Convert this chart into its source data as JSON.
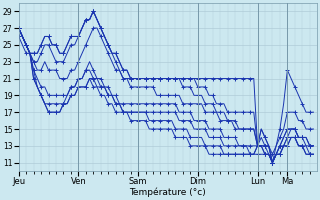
{
  "xlabel": "Température (°c)",
  "bg_color": "#cce8f0",
  "grid_color": "#b0ccd8",
  "line_color": "#1a35b0",
  "ylim": [
    10,
    30
  ],
  "yticks": [
    11,
    13,
    15,
    17,
    19,
    21,
    23,
    25,
    27,
    29
  ],
  "day_labels": [
    "Jeu",
    "Ven",
    "Sam",
    "Dim",
    "Lun",
    "Ma"
  ],
  "day_tick_positions": [
    0,
    16,
    32,
    48,
    64,
    72
  ],
  "xlim": [
    0,
    80
  ],
  "series": [
    [
      27,
      26,
      25,
      24,
      24,
      24,
      25,
      26,
      26,
      25,
      25,
      24,
      24,
      25,
      26,
      26,
      26,
      27,
      28,
      28,
      29,
      28,
      27,
      26,
      25,
      24,
      24,
      23,
      22,
      22,
      21,
      21,
      21,
      21,
      21,
      21,
      21,
      21,
      21,
      21,
      21,
      21,
      21,
      21,
      21,
      21,
      21,
      21,
      21,
      21,
      21,
      21,
      21,
      21,
      21,
      21,
      21,
      21,
      21,
      21,
      21,
      21,
      21,
      21,
      13,
      15,
      14,
      13,
      12,
      13,
      15,
      18,
      22,
      21,
      20,
      19,
      18,
      17,
      17,
      17
    ],
    [
      27,
      26,
      25,
      24,
      24,
      24,
      25,
      26,
      26,
      25,
      25,
      24,
      24,
      25,
      26,
      26,
      26,
      27,
      28,
      28,
      29,
      28,
      27,
      26,
      25,
      24,
      24,
      23,
      22,
      22,
      21,
      21,
      21,
      21,
      21,
      21,
      21,
      21,
      21,
      21,
      21,
      21,
      21,
      21,
      21,
      21,
      21,
      21,
      20,
      20,
      20,
      19,
      19,
      18,
      18,
      18,
      17,
      17,
      17,
      17,
      17,
      17,
      17,
      17,
      13,
      15,
      14,
      13,
      11,
      13,
      14,
      15,
      17,
      17,
      17,
      16,
      16,
      15,
      15,
      15
    ],
    [
      27,
      26,
      25,
      24,
      23,
      23,
      24,
      25,
      25,
      24,
      23,
      23,
      23,
      24,
      25,
      25,
      26,
      27,
      28,
      28,
      29,
      28,
      27,
      26,
      25,
      24,
      23,
      22,
      21,
      21,
      21,
      21,
      21,
      21,
      21,
      21,
      21,
      21,
      21,
      21,
      21,
      21,
      21,
      21,
      20,
      20,
      20,
      19,
      19,
      19,
      18,
      18,
      18,
      17,
      17,
      17,
      16,
      16,
      16,
      15,
      15,
      15,
      15,
      15,
      13,
      14,
      13,
      13,
      11,
      12,
      13,
      14,
      15,
      15,
      15,
      14,
      14,
      14,
      13,
      13
    ],
    [
      27,
      26,
      25,
      24,
      23,
      22,
      22,
      23,
      22,
      22,
      22,
      21,
      21,
      21,
      22,
      22,
      23,
      24,
      25,
      26,
      27,
      27,
      26,
      25,
      24,
      23,
      22,
      22,
      21,
      21,
      20,
      20,
      20,
      20,
      20,
      20,
      20,
      19,
      19,
      19,
      19,
      19,
      19,
      19,
      18,
      18,
      18,
      18,
      18,
      18,
      17,
      17,
      17,
      17,
      16,
      16,
      16,
      16,
      15,
      15,
      15,
      15,
      15,
      15,
      13,
      13,
      13,
      13,
      11,
      12,
      13,
      14,
      15,
      15,
      15,
      14,
      14,
      14,
      13,
      13
    ],
    [
      27,
      26,
      25,
      24,
      22,
      21,
      20,
      20,
      19,
      19,
      19,
      19,
      19,
      19,
      20,
      20,
      21,
      21,
      22,
      23,
      22,
      21,
      21,
      20,
      20,
      19,
      19,
      18,
      18,
      18,
      18,
      18,
      18,
      18,
      18,
      18,
      18,
      18,
      18,
      18,
      18,
      18,
      18,
      17,
      17,
      17,
      17,
      16,
      16,
      16,
      16,
      15,
      15,
      15,
      15,
      14,
      14,
      14,
      14,
      13,
      13,
      13,
      13,
      13,
      13,
      13,
      12,
      12,
      11,
      12,
      13,
      13,
      14,
      14,
      14,
      13,
      13,
      12,
      12,
      12
    ],
    [
      27,
      26,
      25,
      24,
      22,
      20,
      19,
      18,
      18,
      18,
      18,
      18,
      18,
      19,
      20,
      20,
      21,
      21,
      22,
      22,
      21,
      21,
      20,
      20,
      19,
      19,
      18,
      18,
      17,
      17,
      17,
      17,
      17,
      17,
      17,
      17,
      17,
      17,
      17,
      17,
      17,
      17,
      17,
      16,
      16,
      16,
      16,
      15,
      15,
      15,
      15,
      14,
      14,
      14,
      14,
      13,
      13,
      13,
      13,
      13,
      13,
      13,
      12,
      12,
      12,
      12,
      12,
      12,
      11,
      12,
      12,
      13,
      13,
      14,
      14,
      13,
      13,
      13,
      12,
      12
    ],
    [
      27,
      26,
      25,
      24,
      21,
      20,
      19,
      18,
      17,
      17,
      17,
      17,
      18,
      18,
      19,
      19,
      20,
      20,
      20,
      21,
      21,
      20,
      20,
      20,
      19,
      19,
      18,
      18,
      17,
      17,
      17,
      17,
      17,
      17,
      17,
      16,
      16,
      16,
      16,
      16,
      16,
      16,
      15,
      15,
      15,
      15,
      14,
      14,
      14,
      14,
      13,
      13,
      13,
      13,
      13,
      12,
      12,
      12,
      12,
      12,
      12,
      12,
      12,
      12,
      13,
      13,
      13,
      12,
      11,
      12,
      12,
      13,
      13,
      14,
      14,
      13,
      13,
      12,
      12,
      12
    ],
    [
      26,
      25,
      24,
      24,
      21,
      20,
      19,
      18,
      17,
      17,
      17,
      17,
      18,
      18,
      19,
      19,
      20,
      20,
      20,
      21,
      20,
      20,
      19,
      19,
      18,
      18,
      17,
      17,
      17,
      17,
      16,
      16,
      16,
      16,
      16,
      15,
      15,
      15,
      15,
      15,
      15,
      15,
      14,
      14,
      14,
      14,
      13,
      13,
      13,
      13,
      13,
      12,
      12,
      12,
      12,
      12,
      12,
      12,
      12,
      12,
      12,
      12,
      12,
      12,
      13,
      13,
      12,
      12,
      11,
      12,
      12,
      13,
      14,
      15,
      15,
      14,
      14,
      13,
      13,
      13
    ]
  ]
}
